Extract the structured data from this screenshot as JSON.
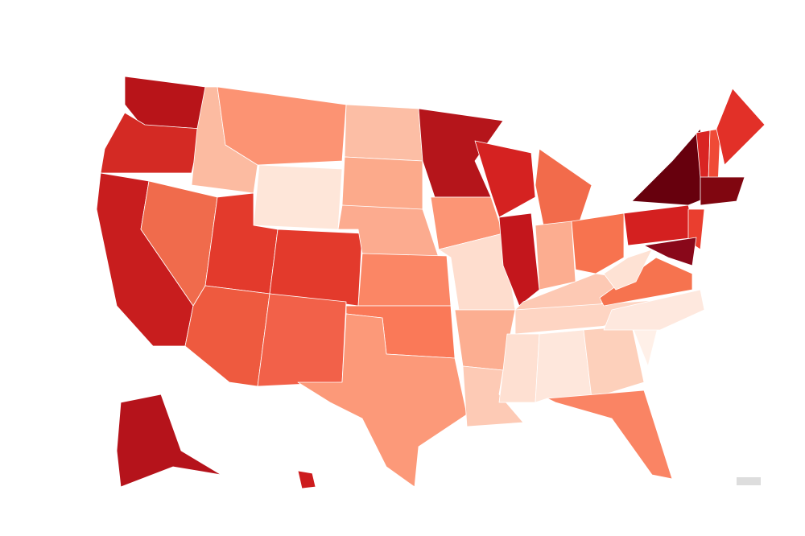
{
  "regions": [
    {
      "color": "#b81419"
    },
    {
      "color": "#d42a24"
    },
    {
      "color": "#c81d1e"
    },
    {
      "color": "#f06b4c"
    },
    {
      "color": "#fcbba1"
    },
    {
      "color": "#fc9373"
    },
    {
      "color": "#fee6d9"
    },
    {
      "color": "#e33a2c"
    },
    {
      "color": "#e33a2c"
    },
    {
      "color": "#ee5a3f"
    },
    {
      "color": "#f26149"
    },
    {
      "color": "#fcbea5"
    },
    {
      "color": "#fcaa8b"
    },
    {
      "color": "#fcab8f"
    },
    {
      "color": "#fb8665"
    },
    {
      "color": "#fa7958"
    },
    {
      "color": "#fc9979"
    },
    {
      "color": "#b5151b"
    },
    {
      "color": "#fc9575"
    },
    {
      "color": "#feddce"
    },
    {
      "color": "#fcae91"
    },
    {
      "color": "#fdcab5"
    },
    {
      "color": "#d52221"
    },
    {
      "color": "#c3161c"
    },
    {
      "color": "#f26b4b"
    },
    {
      "color": "#fcad90"
    },
    {
      "color": "#f7734f"
    },
    {
      "color": "#fdc9b4"
    },
    {
      "color": "#fed5c3"
    },
    {
      "color": "#fee0d2"
    },
    {
      "color": "#fee7dc"
    },
    {
      "color": "#fdd0bb"
    },
    {
      "color": "#fa8464"
    },
    {
      "color": "#fff0e8"
    },
    {
      "color": "#fee8de"
    },
    {
      "color": "#f6734f"
    },
    {
      "color": "#fee2d4"
    },
    {
      "color": "#d42020"
    },
    {
      "color": "#67000d"
    },
    {
      "color": "#d92523"
    },
    {
      "color": "#ef4a36"
    },
    {
      "color": "#e23028"
    },
    {
      "color": "#800610"
    },
    {
      "color": "#ea3e2f"
    },
    {
      "color": "#89081a"
    },
    {
      "color": "#b5131b"
    },
    {
      "color": "#cd1c1e"
    }
  ]
}
